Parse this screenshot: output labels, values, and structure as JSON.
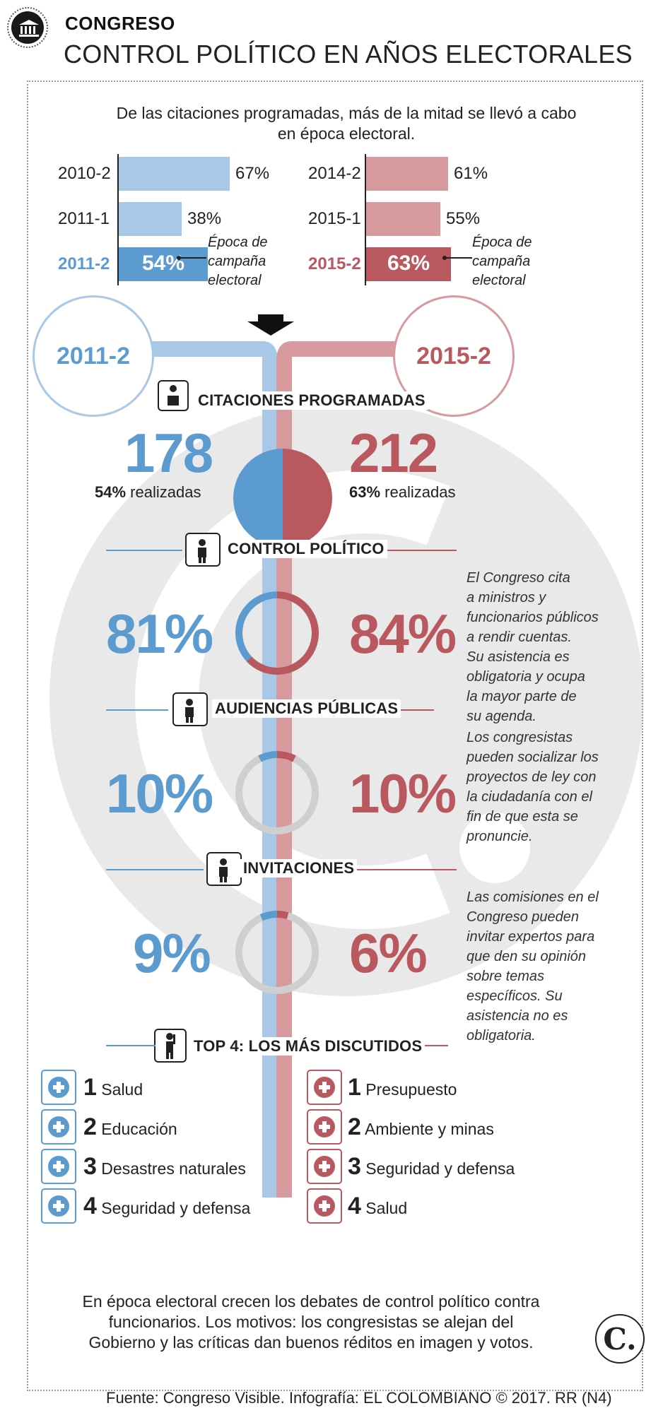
{
  "header": {
    "kicker": "CONGRESO",
    "title": "CONTROL POLÍTICO EN AÑOS ELECTORALES"
  },
  "intro": "De las citaciones programadas, más de la mitad se llevó a cabo en época electoral.",
  "epoca_label": [
    "Época de",
    "campaña",
    "electoral"
  ],
  "colors": {
    "blue": "#5b9bd0",
    "red": "#b9585f",
    "gray": "#cfcfd1"
  },
  "chart_data": [
    {
      "type": "bar",
      "orientation": "horizontal",
      "categories": [
        "2010-2",
        "2011-1",
        "2011-2"
      ],
      "values": [
        67,
        38,
        54
      ],
      "labels": [
        "67%",
        "38%",
        "54%"
      ],
      "highlight": "2011-2"
    },
    {
      "type": "bar",
      "orientation": "horizontal",
      "categories": [
        "2014-2",
        "2015-1",
        "2015-2"
      ],
      "values": [
        61,
        55,
        63
      ],
      "labels": [
        "61%",
        "55%",
        "63%"
      ],
      "highlight": "2015-2"
    }
  ],
  "years": {
    "left": "2011-2",
    "right": "2015-2"
  },
  "citaciones": {
    "title": "CITACIONES PROGRAMADAS",
    "left": {
      "count": "178",
      "pct": "54%",
      "text": "realizadas",
      "value": 54
    },
    "right": {
      "count": "212",
      "pct": "63%",
      "text": "realizadas",
      "value": 63
    }
  },
  "categories": [
    {
      "title": "CONTROL POLÍTICO",
      "left": "81%",
      "right": "84%",
      "left_value": 81,
      "right_value": 84,
      "note": [
        "El Congreso cita",
        "a ministros y",
        "funcionarios públicos",
        "a rendir cuentas.",
        "Su asistencia es",
        "obligatoria y ocupa",
        "la mayor parte de",
        "su agenda."
      ]
    },
    {
      "title": "AUDIENCIAS PÚBLICAS",
      "left": "10%",
      "right": "10%",
      "left_value": 10,
      "right_value": 10,
      "note": [
        "Los congresistas",
        "pueden socializar los",
        "proyectos de ley con",
        "la ciudadanía con el",
        "fin de que esta se",
        "pronuncie."
      ]
    },
    {
      "title": "INVITACIONES",
      "left": "9%",
      "right": "6%",
      "left_value": 9,
      "right_value": 6,
      "note": [
        "Las comisiones en el",
        "Congreso pueden",
        "invitar expertos para",
        "que den su opinión",
        "sobre temas",
        "específicos. Su",
        "asistencia no es",
        "obligatoria."
      ]
    }
  ],
  "top4": {
    "title": "TOP 4: LOS MÁS DISCUTIDOS",
    "left": [
      {
        "rank": "1",
        "label": "Salud",
        "icon": "medkit-icon"
      },
      {
        "rank": "2",
        "label": "Educación",
        "icon": "graduate-icon"
      },
      {
        "rank": "3",
        "label": "Desastres naturales",
        "icon": "disaster-icon"
      },
      {
        "rank": "4",
        "label": "Seguridad y defensa",
        "icon": "soldier-icon"
      }
    ],
    "right": [
      {
        "rank": "1",
        "label": "Presupuesto",
        "icon": "coins-icon"
      },
      {
        "rank": "2",
        "label": "Ambiente y minas",
        "icon": "leaf-icon"
      },
      {
        "rank": "3",
        "label": "Seguridad y defensa",
        "icon": "soldier-icon"
      },
      {
        "rank": "4",
        "label": "Salud",
        "icon": "medkit-icon"
      }
    ]
  },
  "outro": "En época electoral crecen los debates de control político contra funcionarios. Los motivos: los congresistas se alejan del Gobierno y las críticas dan buenos réditos en imagen y votos.",
  "logo": "C.",
  "source": "Fuente: Congreso Visible. Infografía: EL COLOMBIANO © 2017. RR (N4)"
}
